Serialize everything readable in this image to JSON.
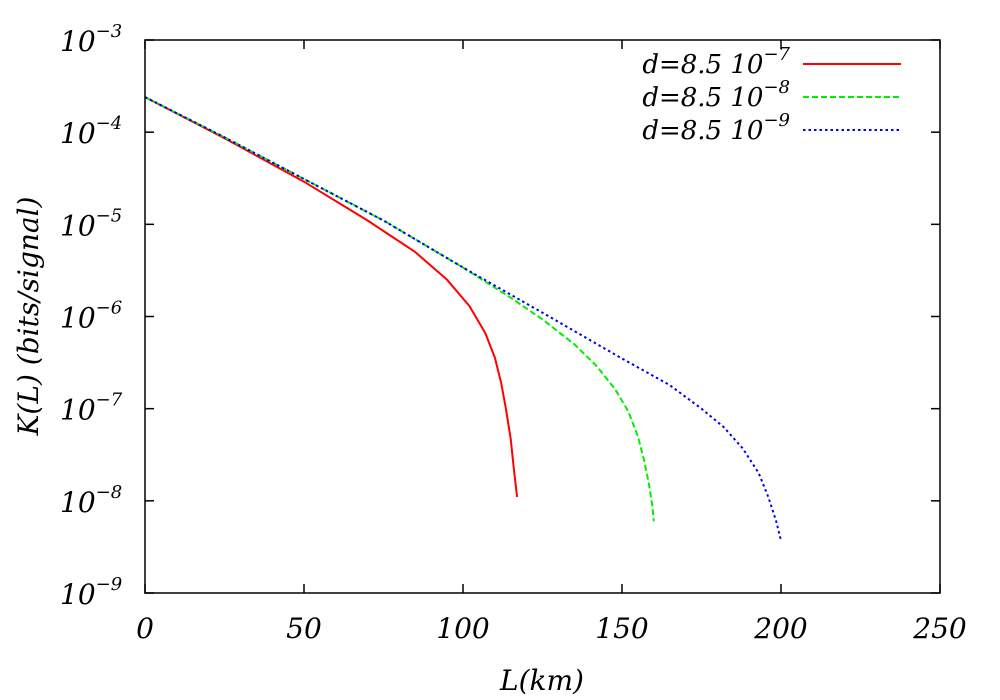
{
  "chart_data": {
    "type": "line",
    "title": "",
    "xlabel": "L(km)",
    "ylabel": "K(L) (bits/signal)",
    "xlim": [
      0,
      250
    ],
    "ylim": [
      1e-09,
      0.001
    ],
    "yscale": "log",
    "grid": false,
    "legend_position": "top-right",
    "x_ticks": [
      {
        "value": 0,
        "label": "0"
      },
      {
        "value": 50,
        "label": "50"
      },
      {
        "value": 100,
        "label": "100"
      },
      {
        "value": 150,
        "label": "150"
      },
      {
        "value": 200,
        "label": "200"
      },
      {
        "value": 250,
        "label": "250"
      }
    ],
    "y_ticks": [
      {
        "value": 1e-09,
        "base": "10",
        "exp": "−9"
      },
      {
        "value": 1e-08,
        "base": "10",
        "exp": "−8"
      },
      {
        "value": 1e-07,
        "base": "10",
        "exp": "−7"
      },
      {
        "value": 1e-06,
        "base": "10",
        "exp": "−6"
      },
      {
        "value": 1e-05,
        "base": "10",
        "exp": "−5"
      },
      {
        "value": 0.0001,
        "base": "10",
        "exp": "−4"
      },
      {
        "value": 0.001,
        "base": "10",
        "exp": "−3"
      }
    ],
    "series": [
      {
        "name_base": "d=8.5 10",
        "name_exp": "−7",
        "color": "#ff0000",
        "dash": "solid",
        "x": [
          0,
          25,
          50,
          70,
          85,
          95,
          102,
          107,
          110,
          112,
          113.5,
          115,
          116,
          117
        ],
        "y": [
          0.00024,
          8.6e-05,
          2.9e-05,
          1.1e-05,
          5e-06,
          2.5e-06,
          1.3e-06,
          6.6e-07,
          3.6e-07,
          1.9e-07,
          1e-07,
          4.7e-08,
          2.2e-08,
          1.1e-08
        ]
      },
      {
        "name_base": "d=8.5 10",
        "name_exp": "−8",
        "color": "#00ee00",
        "dash": "dashed",
        "x": [
          0,
          25,
          50,
          75,
          100,
          115,
          125,
          135,
          142,
          148,
          152,
          155,
          157,
          158.5,
          159.5,
          160
        ],
        "y": [
          0.00024,
          8.8e-05,
          3.1e-05,
          1.1e-05,
          3.4e-06,
          1.6e-06,
          9.3e-07,
          5e-07,
          2.9e-07,
          1.6e-07,
          9.3e-08,
          5e-08,
          2.7e-08,
          1.5e-08,
          9e-09,
          6e-09
        ]
      },
      {
        "name_base": "d=8.5 10",
        "name_exp": "−9",
        "color": "#0000ee",
        "dash": "dotted",
        "x": [
          0,
          25,
          50,
          75,
          100,
          125,
          150,
          165,
          175,
          182,
          188,
          193,
          196,
          198.5,
          200
        ],
        "y": [
          0.00024,
          8.8e-05,
          3.1e-05,
          1.1e-05,
          3.4e-06,
          1.1e-06,
          3.5e-07,
          1.8e-07,
          1e-07,
          6.3e-08,
          3.7e-08,
          2e-08,
          1.1e-08,
          6e-09,
          3.7e-09
        ]
      }
    ]
  }
}
